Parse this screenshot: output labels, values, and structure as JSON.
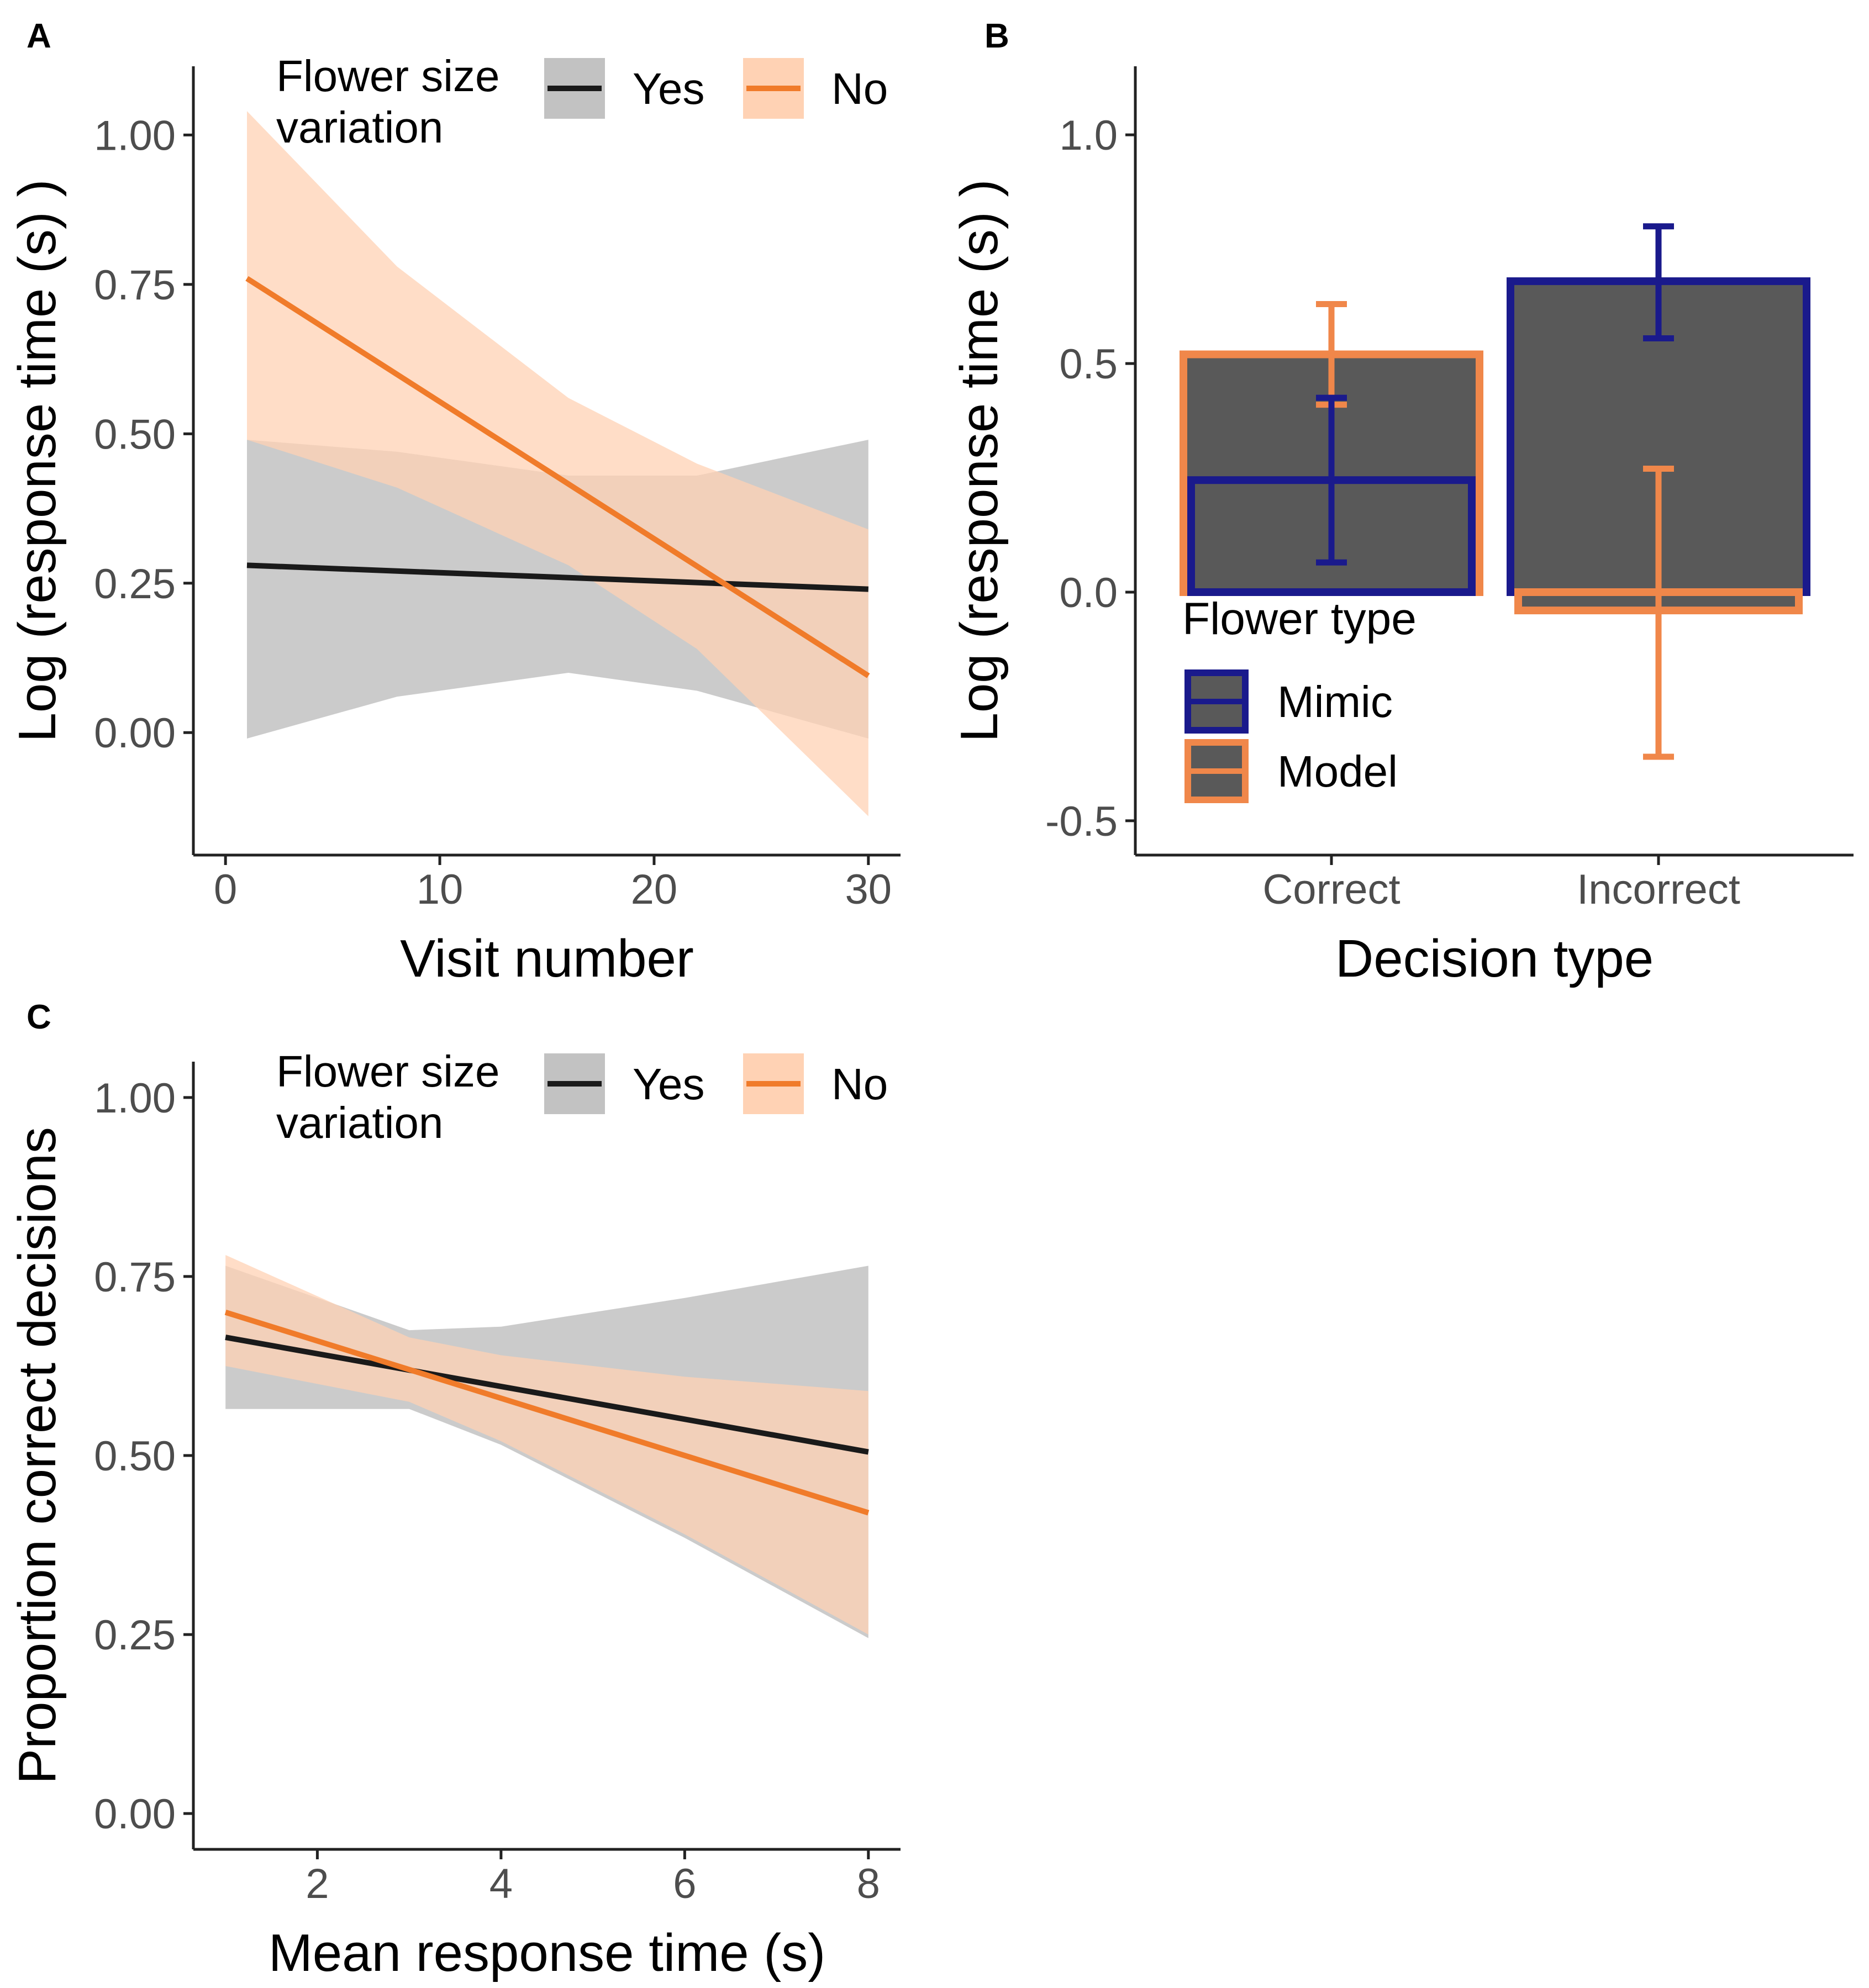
{
  "colors": {
    "black_line": "#1a1a1a",
    "orange_line": "#f07b2a",
    "gray_band": "#c2c2c2",
    "orange_band": "#ffd2b4",
    "overlap_band": "#c8a896",
    "bar_fill": "#595959",
    "mimic": "#1a1a8c",
    "model": "#f0874a",
    "axis": "#222222",
    "tick_text": "#4d4d4d"
  },
  "chart_data": [
    {
      "panel": "A",
      "type": "line",
      "xlabel": "Visit number",
      "ylabel": "Log (response time (s) )",
      "xlim": [
        -1.5,
        31.5
      ],
      "ylim": [
        -0.205,
        1.115
      ],
      "xticks": [
        0,
        10,
        20,
        30
      ],
      "xtick_labels": [
        "0",
        "10",
        "20",
        "30"
      ],
      "yticks": [
        0,
        0.25,
        0.5,
        0.75,
        1
      ],
      "ytick_labels": [
        "0.00",
        "0.25",
        "0.50",
        "0.75",
        "1.00"
      ],
      "legend": {
        "title_lines": [
          "Flower size",
          "variation"
        ],
        "items": [
          "Yes",
          "No"
        ],
        "position": "top"
      },
      "series": [
        {
          "name": "Yes",
          "x": [
            1,
            30
          ],
          "y": [
            0.28,
            0.24
          ],
          "band_x": [
            1,
            8,
            16,
            22,
            30
          ],
          "band_low": [
            -0.01,
            0.06,
            0.1,
            0.07,
            -0.01
          ],
          "band_high": [
            0.49,
            0.47,
            0.43,
            0.43,
            0.49
          ]
        },
        {
          "name": "No",
          "x": [
            1,
            30
          ],
          "y": [
            0.76,
            0.095
          ],
          "band_x": [
            1,
            8,
            16,
            22,
            30
          ],
          "band_low": [
            0.49,
            0.41,
            0.28,
            0.14,
            -0.14
          ],
          "band_high": [
            1.04,
            0.78,
            0.56,
            0.45,
            0.34
          ]
        }
      ]
    },
    {
      "panel": "B",
      "type": "bar",
      "xlabel": "Decision type",
      "ylabel": "Log (response time (s) )",
      "categories": [
        "Correct",
        "Incorrect"
      ],
      "ylim": [
        -0.575,
        1.15
      ],
      "yticks": [
        -0.5,
        0,
        0.5,
        1
      ],
      "ytick_labels": [
        "-0.5",
        "0.0",
        "0.5",
        "1.0"
      ],
      "legend": {
        "title": "Flower type",
        "items": [
          "Mimic",
          "Model"
        ],
        "position": "inside-left"
      },
      "series": [
        {
          "name": "Model",
          "values": [
            0.52,
            -0.04
          ],
          "err_low": [
            0.41,
            -0.36
          ],
          "err_high": [
            0.63,
            0.27
          ]
        },
        {
          "name": "Mimic",
          "values": [
            0.245,
            0.68
          ],
          "err_low": [
            0.065,
            0.555
          ],
          "err_high": [
            0.425,
            0.8
          ]
        }
      ]
    },
    {
      "panel": "C",
      "type": "line",
      "xlabel": "Mean response time (s)",
      "ylabel": "Proportion correct decisions",
      "xlim": [
        0.65,
        8.35
      ],
      "ylim": [
        -0.05,
        1.05
      ],
      "xticks": [
        2,
        4,
        6,
        8
      ],
      "xtick_labels": [
        "2",
        "4",
        "6",
        "8"
      ],
      "yticks": [
        0,
        0.25,
        0.5,
        0.75,
        1
      ],
      "ytick_labels": [
        "0.00",
        "0.25",
        "0.50",
        "0.75",
        "1.00"
      ],
      "legend": {
        "title_lines": [
          "Flower size",
          "variation"
        ],
        "items": [
          "Yes",
          "No"
        ],
        "position": "top"
      },
      "series": [
        {
          "name": "Yes",
          "x": [
            1,
            8
          ],
          "y": [
            0.665,
            0.505
          ],
          "band_x": [
            1,
            3,
            4,
            6,
            8
          ],
          "band_low": [
            0.565,
            0.565,
            0.515,
            0.385,
            0.245
          ],
          "band_high": [
            0.765,
            0.675,
            0.68,
            0.72,
            0.765
          ]
        },
        {
          "name": "No",
          "x": [
            1,
            8
          ],
          "y": [
            0.7,
            0.42
          ],
          "band_x": [
            1,
            3,
            4,
            6,
            8
          ],
          "band_low": [
            0.625,
            0.575,
            0.52,
            0.39,
            0.25
          ],
          "band_high": [
            0.78,
            0.665,
            0.64,
            0.61,
            0.59
          ]
        }
      ]
    }
  ]
}
